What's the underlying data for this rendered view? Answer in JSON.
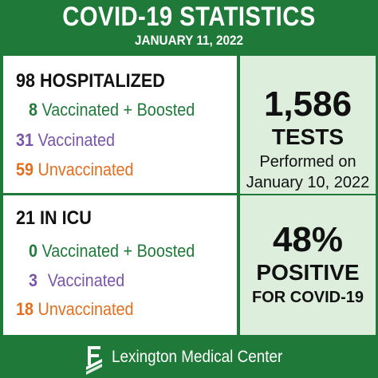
{
  "header": {
    "title": "COVID-19 STATISTICS",
    "date": "JANUARY 11, 2022"
  },
  "hospitalized": {
    "count": "98",
    "label": "HOSPITALIZED",
    "rows": [
      {
        "num": "8",
        "label": "Vaccinated + Boosted",
        "color": "#1f7a3a"
      },
      {
        "num": "31",
        "label": "Vaccinated",
        "color": "#7a56a8"
      },
      {
        "num": "59",
        "label": "Unvaccinated",
        "color": "#e46e1e"
      }
    ]
  },
  "icu": {
    "count": "21",
    "label": "IN ICU",
    "rows": [
      {
        "num": "0",
        "label": "Vaccinated + Boosted",
        "color": "#1f7a3a"
      },
      {
        "num": "3",
        "label": "Vaccinated",
        "color": "#7a56a8"
      },
      {
        "num": "18",
        "label": "Unvaccinated",
        "color": "#e46e1e"
      }
    ]
  },
  "tests": {
    "count": "1,586",
    "label": "TESTS",
    "line1": "Performed on",
    "line2": "January 10, 2022"
  },
  "positivity": {
    "percent": "48%",
    "label": "POSITIVE",
    "sub": "FOR COVID-19"
  },
  "footer": {
    "org": "Lexington Medical Center",
    "logo_icon": "lexington-logo-icon"
  },
  "colors": {
    "brand_green": "#1f7a3a",
    "panel_tint": "#ddeedd",
    "purple": "#7a56a8",
    "orange": "#e46e1e"
  }
}
